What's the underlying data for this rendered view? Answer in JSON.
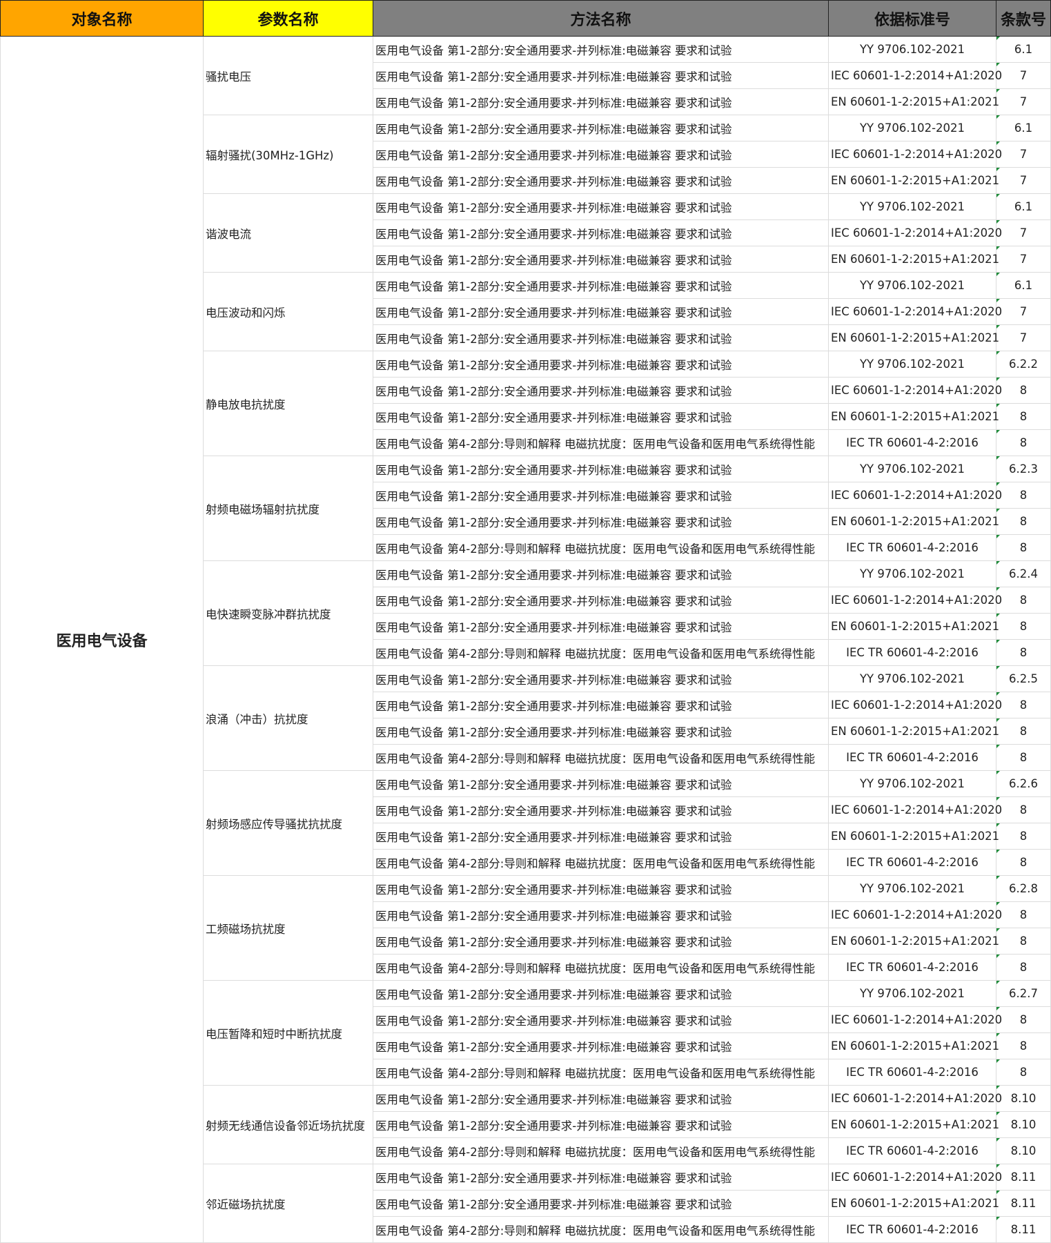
{
  "header": {
    "object": "对象名称",
    "param": "参数名称",
    "method": "方法名称",
    "standard": "依据标准号",
    "clause": "条款号",
    "colors": {
      "object": "#FFA500",
      "param": "#FFFF00",
      "method": "#808080",
      "standard": "#808080",
      "clause": "#808080"
    }
  },
  "object_name": "医用电气设备",
  "groups": [
    {
      "param": "骚扰电压",
      "rows": [
        {
          "method": "医用电气设备 第1-2部分:安全通用要求-并列标准:电磁兼容 要求和试验",
          "standard": "YY 9706.102-2021",
          "clause": "6.1"
        },
        {
          "method": "医用电气设备 第1-2部分:安全通用要求-并列标准:电磁兼容 要求和试验",
          "standard": "IEC 60601-1-2:2014+A1:2020",
          "clause": "7"
        },
        {
          "method": "医用电气设备 第1-2部分:安全通用要求-并列标准:电磁兼容 要求和试验",
          "standard": "EN 60601-1-2:2015+A1:2021",
          "clause": "7"
        }
      ]
    },
    {
      "param": "辐射骚扰(30MHz-1GHz)",
      "rows": [
        {
          "method": "医用电气设备 第1-2部分:安全通用要求-并列标准:电磁兼容 要求和试验",
          "standard": "YY 9706.102-2021",
          "clause": "6.1"
        },
        {
          "method": "医用电气设备 第1-2部分:安全通用要求-并列标准:电磁兼容 要求和试验",
          "standard": "IEC 60601-1-2:2014+A1:2020",
          "clause": "7"
        },
        {
          "method": "医用电气设备 第1-2部分:安全通用要求-并列标准:电磁兼容 要求和试验",
          "standard": "EN 60601-1-2:2015+A1:2021",
          "clause": "7"
        }
      ]
    },
    {
      "param": "谐波电流",
      "rows": [
        {
          "method": "医用电气设备 第1-2部分:安全通用要求-并列标准:电磁兼容 要求和试验",
          "standard": "YY 9706.102-2021",
          "clause": "6.1"
        },
        {
          "method": "医用电气设备 第1-2部分:安全通用要求-并列标准:电磁兼容 要求和试验",
          "standard": "IEC 60601-1-2:2014+A1:2020",
          "clause": "7"
        },
        {
          "method": "医用电气设备 第1-2部分:安全通用要求-并列标准:电磁兼容 要求和试验",
          "standard": "EN 60601-1-2:2015+A1:2021",
          "clause": "7"
        }
      ]
    },
    {
      "param": "电压波动和闪烁",
      "rows": [
        {
          "method": "医用电气设备 第1-2部分:安全通用要求-并列标准:电磁兼容 要求和试验",
          "standard": "YY 9706.102-2021",
          "clause": "6.1"
        },
        {
          "method": "医用电气设备 第1-2部分:安全通用要求-并列标准:电磁兼容 要求和试验",
          "standard": "IEC 60601-1-2:2014+A1:2020",
          "clause": "7"
        },
        {
          "method": "医用电气设备 第1-2部分:安全通用要求-并列标准:电磁兼容 要求和试验",
          "standard": "EN 60601-1-2:2015+A1:2021",
          "clause": "7"
        }
      ]
    },
    {
      "param": "静电放电抗扰度",
      "rows": [
        {
          "method": "医用电气设备 第1-2部分:安全通用要求-并列标准:电磁兼容 要求和试验",
          "standard": "YY 9706.102-2021",
          "clause": "6.2.2"
        },
        {
          "method": "医用电气设备 第1-2部分:安全通用要求-并列标准:电磁兼容 要求和试验",
          "standard": "IEC 60601-1-2:2014+A1:2020",
          "clause": "8"
        },
        {
          "method": "医用电气设备 第1-2部分:安全通用要求-并列标准:电磁兼容 要求和试验",
          "standard": "EN 60601-1-2:2015+A1:2021",
          "clause": "8"
        },
        {
          "method": "医用电气设备 第4-2部分:导则和解释 电磁抗扰度：医用电气设备和医用电气系统得性能",
          "standard": "IEC TR 60601-4-2:2016",
          "clause": "8"
        }
      ]
    },
    {
      "param": "射频电磁场辐射抗扰度",
      "rows": [
        {
          "method": "医用电气设备 第1-2部分:安全通用要求-并列标准:电磁兼容 要求和试验",
          "standard": "YY 9706.102-2021",
          "clause": "6.2.3"
        },
        {
          "method": "医用电气设备 第1-2部分:安全通用要求-并列标准:电磁兼容 要求和试验",
          "standard": "IEC 60601-1-2:2014+A1:2020",
          "clause": "8"
        },
        {
          "method": "医用电气设备 第1-2部分:安全通用要求-并列标准:电磁兼容 要求和试验",
          "standard": "EN 60601-1-2:2015+A1:2021",
          "clause": "8"
        },
        {
          "method": "医用电气设备 第4-2部分:导则和解释 电磁抗扰度：医用电气设备和医用电气系统得性能",
          "standard": "IEC TR 60601-4-2:2016",
          "clause": "8"
        }
      ]
    },
    {
      "param": "电快速瞬变脉冲群抗扰度",
      "rows": [
        {
          "method": "医用电气设备 第1-2部分:安全通用要求-并列标准:电磁兼容 要求和试验",
          "standard": "YY 9706.102-2021",
          "clause": "6.2.4"
        },
        {
          "method": "医用电气设备 第1-2部分:安全通用要求-并列标准:电磁兼容 要求和试验",
          "standard": "IEC 60601-1-2:2014+A1:2020",
          "clause": "8"
        },
        {
          "method": "医用电气设备 第1-2部分:安全通用要求-并列标准:电磁兼容 要求和试验",
          "standard": "EN 60601-1-2:2015+A1:2021",
          "clause": "8"
        },
        {
          "method": "医用电气设备 第4-2部分:导则和解释 电磁抗扰度：医用电气设备和医用电气系统得性能",
          "standard": "IEC TR 60601-4-2:2016",
          "clause": "8"
        }
      ]
    },
    {
      "param": "浪涌（冲击）抗扰度",
      "rows": [
        {
          "method": "医用电气设备 第1-2部分:安全通用要求-并列标准:电磁兼容 要求和试验",
          "standard": "YY 9706.102-2021",
          "clause": "6.2.5"
        },
        {
          "method": "医用电气设备 第1-2部分:安全通用要求-并列标准:电磁兼容 要求和试验",
          "standard": "IEC 60601-1-2:2014+A1:2020",
          "clause": "8"
        },
        {
          "method": "医用电气设备 第1-2部分:安全通用要求-并列标准:电磁兼容 要求和试验",
          "standard": "EN 60601-1-2:2015+A1:2021",
          "clause": "8"
        },
        {
          "method": "医用电气设备 第4-2部分:导则和解释 电磁抗扰度：医用电气设备和医用电气系统得性能",
          "standard": "IEC TR 60601-4-2:2016",
          "clause": "8"
        }
      ]
    },
    {
      "param": "射频场感应传导骚扰抗扰度",
      "rows": [
        {
          "method": "医用电气设备 第1-2部分:安全通用要求-并列标准:电磁兼容 要求和试验",
          "standard": "YY 9706.102-2021",
          "clause": "6.2.6"
        },
        {
          "method": "医用电气设备 第1-2部分:安全通用要求-并列标准:电磁兼容 要求和试验",
          "standard": "IEC 60601-1-2:2014+A1:2020",
          "clause": "8"
        },
        {
          "method": "医用电气设备 第1-2部分:安全通用要求-并列标准:电磁兼容 要求和试验",
          "standard": "EN 60601-1-2:2015+A1:2021",
          "clause": "8"
        },
        {
          "method": "医用电气设备 第4-2部分:导则和解释 电磁抗扰度：医用电气设备和医用电气系统得性能",
          "standard": "IEC TR 60601-4-2:2016",
          "clause": "8"
        }
      ]
    },
    {
      "param": "工频磁场抗扰度",
      "rows": [
        {
          "method": "医用电气设备 第1-2部分:安全通用要求-并列标准:电磁兼容 要求和试验",
          "standard": "YY 9706.102-2021",
          "clause": "6.2.8"
        },
        {
          "method": "医用电气设备 第1-2部分:安全通用要求-并列标准:电磁兼容 要求和试验",
          "standard": "IEC 60601-1-2:2014+A1:2020",
          "clause": "8"
        },
        {
          "method": "医用电气设备 第1-2部分:安全通用要求-并列标准:电磁兼容 要求和试验",
          "standard": "EN 60601-1-2:2015+A1:2021",
          "clause": "8"
        },
        {
          "method": "医用电气设备 第4-2部分:导则和解释 电磁抗扰度：医用电气设备和医用电气系统得性能",
          "standard": "IEC TR 60601-4-2:2016",
          "clause": "8"
        }
      ]
    },
    {
      "param": "电压暂降和短时中断抗扰度",
      "rows": [
        {
          "method": "医用电气设备 第1-2部分:安全通用要求-并列标准:电磁兼容 要求和试验",
          "standard": "YY 9706.102-2021",
          "clause": "6.2.7"
        },
        {
          "method": "医用电气设备 第1-2部分:安全通用要求-并列标准:电磁兼容 要求和试验",
          "standard": "IEC 60601-1-2:2014+A1:2020",
          "clause": "8"
        },
        {
          "method": "医用电气设备 第1-2部分:安全通用要求-并列标准:电磁兼容 要求和试验",
          "standard": "EN 60601-1-2:2015+A1:2021",
          "clause": "8"
        },
        {
          "method": "医用电气设备 第4-2部分:导则和解释 电磁抗扰度：医用电气设备和医用电气系统得性能",
          "standard": "IEC TR 60601-4-2:2016",
          "clause": "8"
        }
      ]
    },
    {
      "param": "射频无线通信设备邻近场抗扰度",
      "rows": [
        {
          "method": "医用电气设备 第1-2部分:安全通用要求-并列标准:电磁兼容 要求和试验",
          "standard": "IEC 60601-1-2:2014+A1:2020",
          "clause": "8.10"
        },
        {
          "method": "医用电气设备 第1-2部分:安全通用要求-并列标准:电磁兼容 要求和试验",
          "standard": "EN 60601-1-2:2015+A1:2021",
          "clause": "8.10"
        },
        {
          "method": "医用电气设备 第4-2部分:导则和解释 电磁抗扰度：医用电气设备和医用电气系统得性能",
          "standard": "IEC TR 60601-4-2:2016",
          "clause": "8.10"
        }
      ]
    },
    {
      "param": "邻近磁场抗扰度",
      "rows": [
        {
          "method": "医用电气设备 第1-2部分:安全通用要求-并列标准:电磁兼容 要求和试验",
          "standard": "IEC 60601-1-2:2014+A1:2020",
          "clause": "8.11"
        },
        {
          "method": "医用电气设备 第1-2部分:安全通用要求-并列标准:电磁兼容 要求和试验",
          "standard": "EN 60601-1-2:2015+A1:2021",
          "clause": "8.11"
        },
        {
          "method": "医用电气设备 第4-2部分:导则和解释 电磁抗扰度：医用电气设备和医用电气系统得性能",
          "standard": "IEC TR 60601-4-2:2016",
          "clause": "8.11"
        }
      ]
    }
  ]
}
